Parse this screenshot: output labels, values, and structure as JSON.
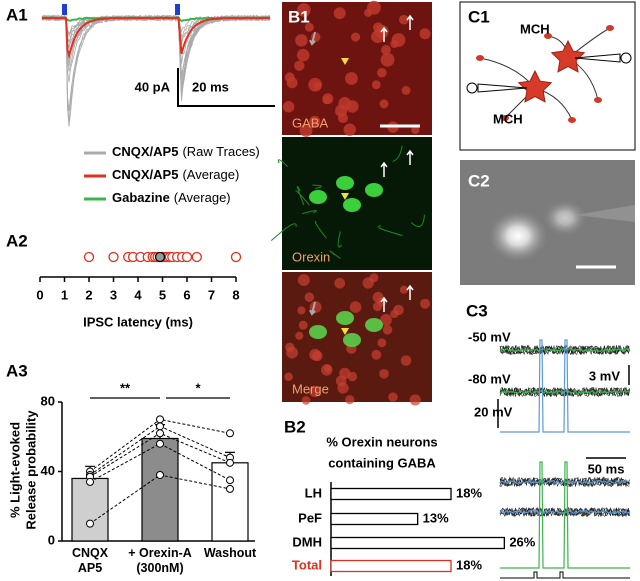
{
  "panels": {
    "a1": {
      "label": "A1",
      "scale_y": "40 pA",
      "scale_x": "20 ms",
      "legend": [
        {
          "name": "CNQX/AP5",
          "detail": "(Raw Traces)",
          "color": "#aaaaaa"
        },
        {
          "name": "CNQX/AP5",
          "detail": "(Average)",
          "color": "#e03020"
        },
        {
          "name": "Gabazine",
          "detail": "(Average)",
          "color": "#3cb44b"
        }
      ]
    },
    "a2": {
      "label": "A2"
    },
    "a3": {
      "label": "A3"
    },
    "b1": {
      "label": "B1",
      "images": [
        "GABA",
        "Orexin",
        "Merge"
      ]
    },
    "b2": {
      "label": "B2"
    },
    "c1": {
      "label": "C1",
      "cells": [
        "MCH",
        "MCH"
      ]
    },
    "c2": {
      "label": "C2"
    },
    "c3": {
      "label": "C3",
      "voltages": [
        "-50 mV",
        "-80 mV"
      ],
      "scale_small": "3 mV",
      "scale_large": "20 mV",
      "scale_time": "50 ms"
    }
  },
  "chart_data": [
    {
      "type": "strip",
      "xlabel": "IPSC latency (ms)",
      "values": [
        2,
        3,
        3.6,
        3.8,
        4.1,
        4.4,
        4.6,
        4.7,
        4.8,
        4.9,
        5.0,
        5.1,
        5.2,
        5.3,
        5.4,
        5.6,
        5.8,
        6.0,
        6.4,
        8
      ],
      "mean": 4.9,
      "color": "#e03020",
      "xlim": [
        0,
        8
      ],
      "xticks": [
        0,
        1,
        2,
        3,
        4,
        5,
        6,
        7,
        8
      ]
    },
    {
      "type": "bar",
      "ylabel": [
        "% Light-evoked",
        "Release probability"
      ],
      "categories": [
        "CNQX AP5",
        "+ Orexin-A (300nM)",
        "Washout"
      ],
      "values": [
        36,
        59,
        45
      ],
      "errors": [
        7,
        8,
        6
      ],
      "colors": [
        "#cfcfcf",
        "#8c8c8c",
        "#ffffff"
      ],
      "cells": [
        [
          40,
          70,
          62
        ],
        [
          38,
          66,
          48
        ],
        [
          37,
          62,
          45
        ],
        [
          34,
          56,
          35
        ],
        [
          10,
          38,
          30
        ]
      ],
      "significance": [
        "**",
        "*"
      ],
      "ylim": [
        0,
        80
      ],
      "yticks": [
        0,
        40,
        80
      ]
    },
    {
      "type": "hbar",
      "title": [
        "% Orexin neurons",
        "containing GABA"
      ],
      "categories": [
        "LH",
        "PeF",
        "DMH",
        "Total"
      ],
      "values": [
        18,
        13,
        26,
        18
      ],
      "value_labels": [
        "18%",
        "13%",
        "26%",
        "18%"
      ],
      "colors": [
        "#000000",
        "#000000",
        "#000000",
        "#e03020"
      ],
      "xlim": [
        0,
        30
      ]
    }
  ]
}
